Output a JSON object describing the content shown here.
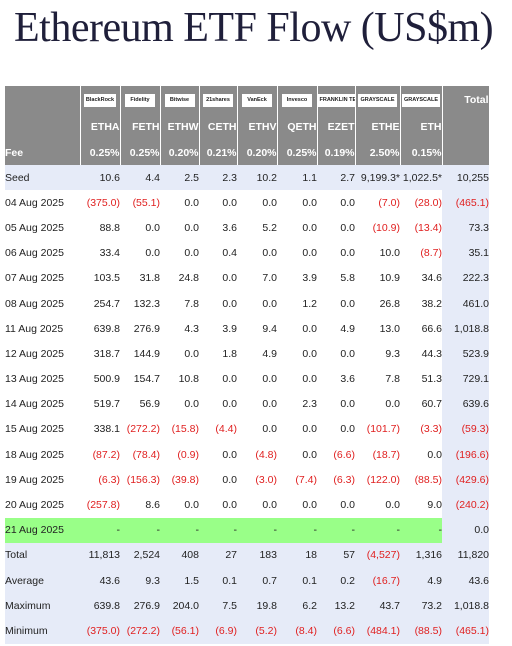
{
  "title": "Ethereum ETF Flow (US$m)",
  "chart_data": {
    "type": "table",
    "issuer_logos": [
      "BlackRock",
      "Fidelity",
      "Bitwise",
      "21shares",
      "VanEck",
      "Invesco",
      "FRANKLIN TEMPLETON",
      "GRAYSCALE",
      "GRAYSCALE"
    ],
    "total_header": "Total",
    "columns": [
      "ETHA",
      "FETH",
      "ETHW",
      "CETH",
      "ETHV",
      "QETH",
      "EZET",
      "ETHE",
      "ETH"
    ],
    "fee_label": "Fee",
    "fees": [
      "0.25%",
      "0.25%",
      "0.20%",
      "0.21%",
      "0.20%",
      "0.25%",
      "0.19%",
      "2.50%",
      "0.15%"
    ],
    "rows": [
      {
        "label": "Seed",
        "values": [
          "10.6",
          "4.4",
          "2.5",
          "2.3",
          "10.2",
          "1.1",
          "2.7",
          "9,199.3*",
          "1,022.5*"
        ],
        "total": "10,255",
        "style": "seed"
      },
      {
        "label": "04 Aug 2025",
        "values": [
          "(375.0)",
          "(55.1)",
          "0.0",
          "0.0",
          "0.0",
          "0.0",
          "0.0",
          "(7.0)",
          "(28.0)"
        ],
        "total": "(465.1)"
      },
      {
        "label": "05 Aug 2025",
        "values": [
          "88.8",
          "0.0",
          "0.0",
          "3.6",
          "5.2",
          "0.0",
          "0.0",
          "(10.9)",
          "(13.4)"
        ],
        "total": "73.3"
      },
      {
        "label": "06 Aug 2025",
        "values": [
          "33.4",
          "0.0",
          "0.0",
          "0.4",
          "0.0",
          "0.0",
          "0.0",
          "10.0",
          "(8.7)"
        ],
        "total": "35.1"
      },
      {
        "label": "07 Aug 2025",
        "values": [
          "103.5",
          "31.8",
          "24.8",
          "0.0",
          "7.0",
          "3.9",
          "5.8",
          "10.9",
          "34.6"
        ],
        "total": "222.3"
      },
      {
        "label": "08 Aug 2025",
        "values": [
          "254.7",
          "132.3",
          "7.8",
          "0.0",
          "0.0",
          "1.2",
          "0.0",
          "26.8",
          "38.2"
        ],
        "total": "461.0"
      },
      {
        "label": "11 Aug 2025",
        "values": [
          "639.8",
          "276.9",
          "4.3",
          "3.9",
          "9.4",
          "0.0",
          "4.9",
          "13.0",
          "66.6"
        ],
        "total": "1,018.8"
      },
      {
        "label": "12 Aug 2025",
        "values": [
          "318.7",
          "144.9",
          "0.0",
          "1.8",
          "4.9",
          "0.0",
          "0.0",
          "9.3",
          "44.3"
        ],
        "total": "523.9"
      },
      {
        "label": "13 Aug 2025",
        "values": [
          "500.9",
          "154.7",
          "10.8",
          "0.0",
          "0.0",
          "0.0",
          "3.6",
          "7.8",
          "51.3"
        ],
        "total": "729.1"
      },
      {
        "label": "14 Aug 2025",
        "values": [
          "519.7",
          "56.9",
          "0.0",
          "0.0",
          "0.0",
          "2.3",
          "0.0",
          "0.0",
          "60.7"
        ],
        "total": "639.6"
      },
      {
        "label": "15 Aug 2025",
        "values": [
          "338.1",
          "(272.2)",
          "(15.8)",
          "(4.4)",
          "0.0",
          "0.0",
          "0.0",
          "(101.7)",
          "(3.3)"
        ],
        "total": "(59.3)"
      },
      {
        "label": "18 Aug 2025",
        "values": [
          "(87.2)",
          "(78.4)",
          "(0.9)",
          "0.0",
          "(4.8)",
          "0.0",
          "(6.6)",
          "(18.7)",
          "0.0"
        ],
        "total": "(196.6)"
      },
      {
        "label": "19 Aug 2025",
        "values": [
          "(6.3)",
          "(156.3)",
          "(39.8)",
          "0.0",
          "(3.0)",
          "(7.4)",
          "(6.3)",
          "(122.0)",
          "(88.5)"
        ],
        "total": "(429.6)"
      },
      {
        "label": "20 Aug 2025",
        "values": [
          "(257.8)",
          "8.6",
          "0.0",
          "0.0",
          "0.0",
          "0.0",
          "0.0",
          "0.0",
          "9.0"
        ],
        "total": "(240.2)"
      },
      {
        "label": "21 Aug 2025",
        "values": [
          "-",
          "-",
          "-",
          "-",
          "-",
          "-",
          "-",
          "-",
          "-"
        ],
        "total": "0.0",
        "style": "green"
      },
      {
        "label": "Total",
        "values": [
          "11,813",
          "2,524",
          "408",
          "27",
          "183",
          "18",
          "57",
          "(4,527)",
          "1,316"
        ],
        "total": "11,820",
        "style": "summary"
      },
      {
        "label": "Average",
        "values": [
          "43.6",
          "9.3",
          "1.5",
          "0.1",
          "0.7",
          "0.1",
          "0.2",
          "(16.7)",
          "4.9"
        ],
        "total": "43.6",
        "style": "summary"
      },
      {
        "label": "Maximum",
        "values": [
          "639.8",
          "276.9",
          "204.0",
          "7.5",
          "19.8",
          "6.2",
          "13.2",
          "43.7",
          "73.2"
        ],
        "total": "1,018.8",
        "style": "summary"
      },
      {
        "label": "Minimum",
        "values": [
          "(375.0)",
          "(272.2)",
          "(56.1)",
          "(6.9)",
          "(5.2)",
          "(8.4)",
          "(6.6)",
          "(484.1)",
          "(88.5)"
        ],
        "total": "(465.1)",
        "style": "summary"
      }
    ]
  }
}
